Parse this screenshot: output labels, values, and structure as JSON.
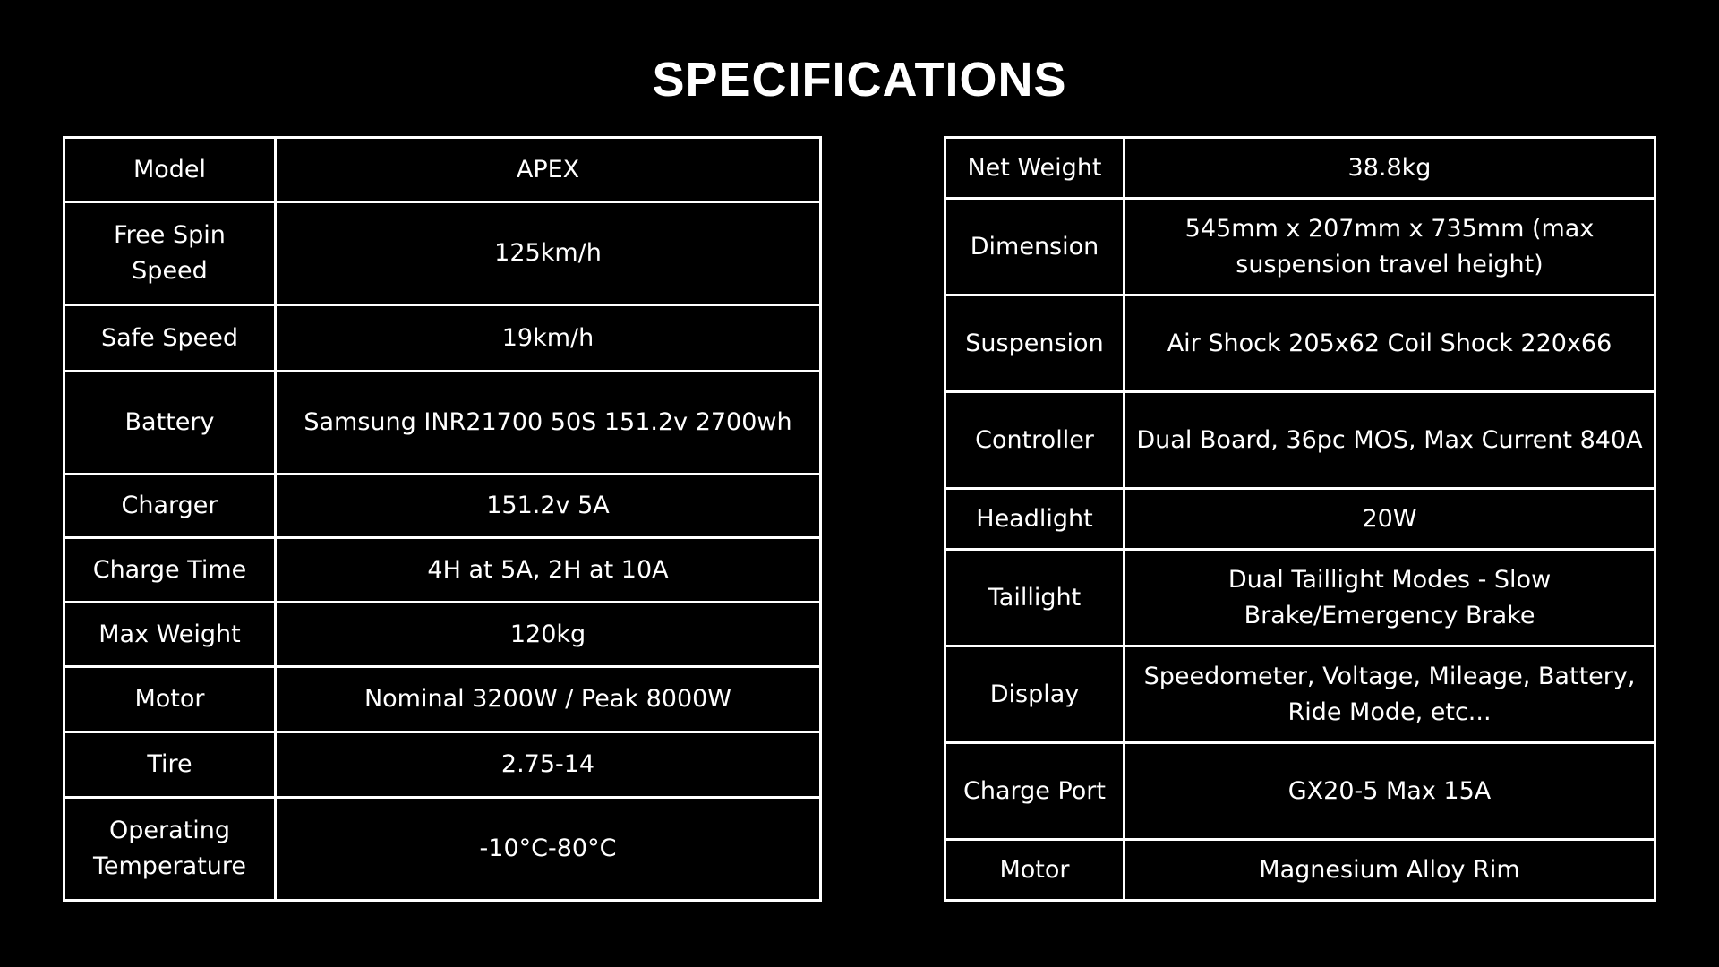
{
  "title": "SPECIFICATIONS",
  "left_table": [
    {
      "label": "Model",
      "value": "APEX"
    },
    {
      "label": "Free Spin Speed",
      "value": "125km/h"
    },
    {
      "label": "Safe Speed",
      "value": "19km/h"
    },
    {
      "label": "Battery",
      "value": "Samsung INR21700 50S 151.2v 2700wh"
    },
    {
      "label": "Charger",
      "value": "151.2v 5A"
    },
    {
      "label": "Charge Time",
      "value": "4H at 5A, 2H at 10A"
    },
    {
      "label": "Max Weight",
      "value": "120kg"
    },
    {
      "label": "Motor",
      "value": "Nominal 3200W / Peak 8000W"
    },
    {
      "label": "Tire",
      "value": "2.75-14"
    },
    {
      "label": "Operating Temperature",
      "value": "-10°C-80°C"
    }
  ],
  "right_table": [
    {
      "label": "Net Weight",
      "value": "38.8kg"
    },
    {
      "label": "Dimension",
      "value": "545mm x 207mm x 735mm (max suspension travel height)"
    },
    {
      "label": "Suspension",
      "value": "Air Shock 205x62 Coil Shock 220x66"
    },
    {
      "label": "Controller",
      "value": "Dual Board, 36pc MOS, Max Current 840A"
    },
    {
      "label": "Headlight",
      "value": "20W"
    },
    {
      "label": "Taillight",
      "value": "Dual Taillight Modes - Slow Brake/Emergency Brake"
    },
    {
      "label": "Display",
      "value": "Speedometer, Voltage, Mileage, Battery, Ride Mode, etc..."
    },
    {
      "label": "Charge Port",
      "value": "GX20-5 Max 15A"
    },
    {
      "label": "Motor",
      "value": "Magnesium Alloy Rim"
    }
  ]
}
